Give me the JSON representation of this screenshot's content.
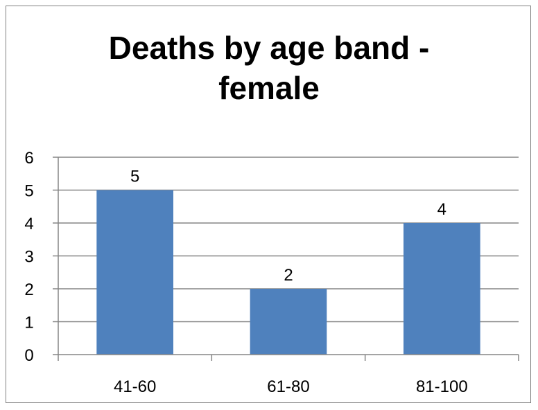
{
  "chart_data": {
    "type": "bar",
    "title_lines": [
      "Deaths by age band -",
      "female"
    ],
    "categories": [
      "41-60",
      "61-80",
      "81-100"
    ],
    "values": [
      5,
      2,
      4
    ],
    "ylim": [
      0,
      6
    ],
    "yticks": [
      0,
      1,
      2,
      3,
      4,
      5,
      6
    ],
    "grid": true,
    "legend": "none",
    "data_labels": true,
    "bar_color": "#4f81bd"
  }
}
